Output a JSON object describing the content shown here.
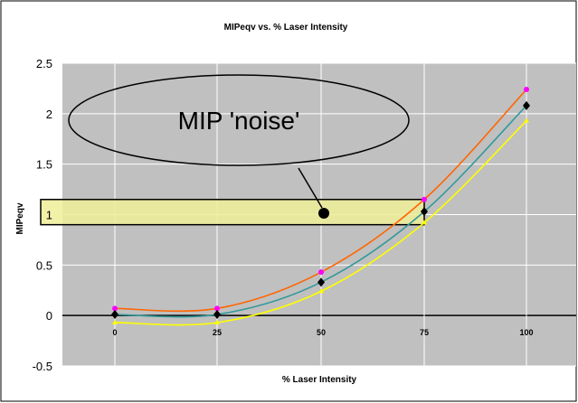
{
  "chart_data": {
    "type": "line",
    "title": "MIPeqv vs. % Laser Intensity",
    "xlabel": "% Laser Intensity",
    "ylabel": "MIPeqv",
    "x_tick_labels": [
      "0",
      "25",
      "50",
      "75",
      "100"
    ],
    "y_tick_labels": [
      "2.5",
      "2",
      "1.5",
      "1",
      "0.5",
      "0",
      "-0.5"
    ],
    "ylim": [
      -0.5,
      2.5
    ],
    "grid": true,
    "legend": "none",
    "series": [
      {
        "color": "#ff6600",
        "marker_color": "#ff00ff",
        "x": [
          0,
          25,
          50,
          75,
          100
        ],
        "y": [
          0.07,
          0.07,
          0.43,
          1.15,
          2.24
        ]
      },
      {
        "color": "#339999",
        "marker_color": "#000000",
        "x": [
          0,
          25,
          50,
          75,
          100
        ],
        "y": [
          0.01,
          0.01,
          0.33,
          1.03,
          2.08
        ]
      },
      {
        "color": "#ffff00",
        "marker_color": "#ffff00",
        "x": [
          0,
          25,
          50,
          75,
          100
        ],
        "y": [
          -0.07,
          -0.07,
          0.24,
          0.92,
          1.93
        ]
      }
    ],
    "annotations": {
      "noise_label": "MIP 'noise'",
      "noise_band": [
        0.9,
        1.15
      ]
    }
  },
  "colors": {
    "plot_background": "#c0c0c0",
    "band_fill": "#eeee99",
    "gridline": "#ffffff"
  }
}
